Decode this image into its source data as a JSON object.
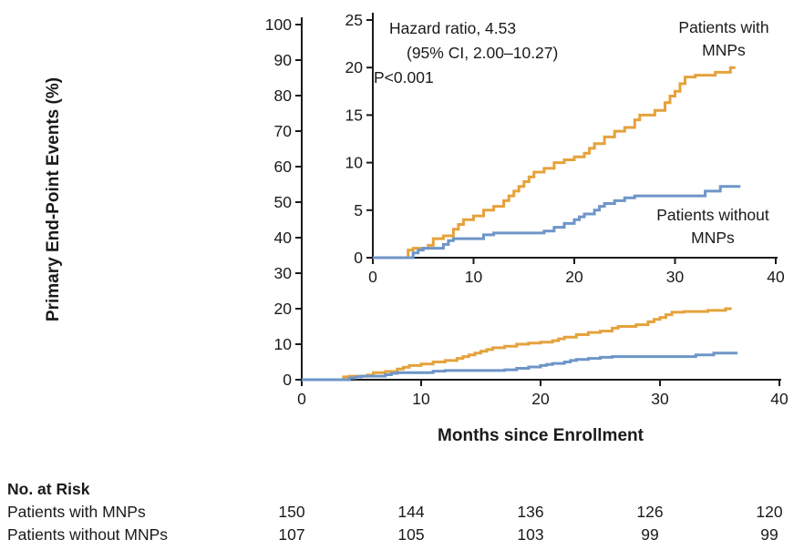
{
  "chart_data": {
    "type": "line",
    "subtype": "kaplan-meier-step",
    "title": "",
    "xlabel": "Months since Enrollment",
    "ylabel": "Primary End-Point Events (%)",
    "xlim": [
      0,
      40
    ],
    "xticks": [
      0,
      10,
      20,
      30,
      40
    ],
    "main_ylim": [
      0,
      100
    ],
    "main_yticks": [
      0,
      10,
      20,
      30,
      40,
      50,
      60,
      70,
      80,
      90,
      100
    ],
    "inset_ylim": [
      0,
      25
    ],
    "inset_yticks": [
      0,
      5,
      10,
      15,
      20,
      25
    ],
    "grid": false,
    "axis_color": "#1a1a1a",
    "annotation": {
      "line1": "Hazard ratio, 4.53",
      "line2": "(95% CI, 2.00–10.27)",
      "line3": "P<0.001"
    },
    "series": [
      {
        "name": "Patients with MNPs",
        "color": "#E5A23C",
        "x_end": 36,
        "points": [
          [
            3.5,
            0.8
          ],
          [
            4,
            1
          ],
          [
            5.5,
            1.3
          ],
          [
            6,
            2
          ],
          [
            7,
            2.3
          ],
          [
            8,
            3
          ],
          [
            8.5,
            3.5
          ],
          [
            9,
            4
          ],
          [
            10,
            4.4
          ],
          [
            11,
            5
          ],
          [
            12,
            5.4
          ],
          [
            13,
            6
          ],
          [
            13.5,
            6.5
          ],
          [
            14,
            7
          ],
          [
            14.5,
            7.5
          ],
          [
            15,
            8
          ],
          [
            15.5,
            8.5
          ],
          [
            16,
            9
          ],
          [
            17,
            9.4
          ],
          [
            18,
            10
          ],
          [
            19,
            10.3
          ],
          [
            20,
            10.6
          ],
          [
            21,
            11
          ],
          [
            21.5,
            11.5
          ],
          [
            22,
            12
          ],
          [
            23,
            12.7
          ],
          [
            24,
            13.3
          ],
          [
            25,
            13.7
          ],
          [
            26,
            14.5
          ],
          [
            26.5,
            15
          ],
          [
            28,
            15.5
          ],
          [
            29,
            16.3
          ],
          [
            29.5,
            17
          ],
          [
            30,
            17.5
          ],
          [
            30.5,
            18.3
          ],
          [
            31,
            19
          ],
          [
            32,
            19.2
          ],
          [
            34,
            19.5
          ],
          [
            35.5,
            20
          ]
        ]
      },
      {
        "name": "Patients without MNPs",
        "color": "#6E95C8",
        "x_end": 36.5,
        "points": [
          [
            4,
            0.5
          ],
          [
            4.5,
            0.8
          ],
          [
            5,
            1
          ],
          [
            7,
            1.4
          ],
          [
            7.5,
            1.8
          ],
          [
            8,
            2
          ],
          [
            11,
            2.4
          ],
          [
            12,
            2.6
          ],
          [
            17,
            2.8
          ],
          [
            18,
            3.2
          ],
          [
            19,
            3.6
          ],
          [
            20,
            4
          ],
          [
            20.5,
            4.3
          ],
          [
            21,
            4.6
          ],
          [
            22,
            5
          ],
          [
            22.5,
            5.4
          ],
          [
            23,
            5.7
          ],
          [
            24,
            6
          ],
          [
            25,
            6.3
          ],
          [
            26,
            6.5
          ],
          [
            33,
            7
          ],
          [
            34.5,
            7.5
          ]
        ]
      }
    ]
  },
  "labels": {
    "with_line1": "Patients with",
    "with_line2": "MNPs",
    "without_line1": "Patients without",
    "without_line2": "MNPs"
  },
  "risk_table": {
    "title": "No. at Risk",
    "rows": [
      {
        "label": "Patients with MNPs",
        "values": [
          "150",
          "144",
          "136",
          "126",
          "120"
        ]
      },
      {
        "label": "Patients without MNPs",
        "values": [
          "107",
          "105",
          "103",
          "99",
          "99"
        ]
      }
    ]
  }
}
